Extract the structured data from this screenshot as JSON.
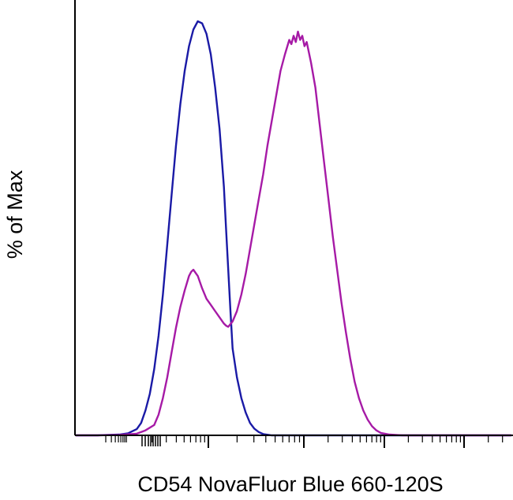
{
  "chart_data": {
    "type": "line",
    "title": "",
    "xlabel": "CD54 NovaFluor Blue 660-120S",
    "ylabel": "% of Max",
    "xscale": "log",
    "ylim": [
      0,
      100
    ],
    "grid": false,
    "legend": "none",
    "series": [
      {
        "color": "#1a1aa6",
        "points": [
          [
            0.0,
            0
          ],
          [
            0.05,
            0
          ],
          [
            0.1,
            0.2
          ],
          [
            0.12,
            0.5
          ],
          [
            0.14,
            1.5
          ],
          [
            0.15,
            3
          ],
          [
            0.16,
            6
          ],
          [
            0.17,
            10
          ],
          [
            0.18,
            16
          ],
          [
            0.19,
            24
          ],
          [
            0.2,
            34
          ],
          [
            0.21,
            46
          ],
          [
            0.22,
            58
          ],
          [
            0.23,
            70
          ],
          [
            0.24,
            80
          ],
          [
            0.25,
            88
          ],
          [
            0.26,
            94
          ],
          [
            0.27,
            98
          ],
          [
            0.28,
            100
          ],
          [
            0.29,
            99.5
          ],
          [
            0.3,
            97
          ],
          [
            0.31,
            92
          ],
          [
            0.32,
            84
          ],
          [
            0.33,
            74
          ],
          [
            0.34,
            60
          ],
          [
            0.345,
            50
          ],
          [
            0.35,
            40
          ],
          [
            0.355,
            30
          ],
          [
            0.36,
            21
          ],
          [
            0.37,
            14
          ],
          [
            0.38,
            9
          ],
          [
            0.39,
            5.5
          ],
          [
            0.4,
            3
          ],
          [
            0.41,
            1.6
          ],
          [
            0.42,
            0.8
          ],
          [
            0.43,
            0.3
          ],
          [
            0.45,
            0
          ],
          [
            1.0,
            0
          ]
        ]
      },
      {
        "color": "#a61aa6",
        "points": [
          [
            0.0,
            0
          ],
          [
            0.05,
            0
          ],
          [
            0.1,
            0.1
          ],
          [
            0.14,
            0.4
          ],
          [
            0.16,
            1.2
          ],
          [
            0.18,
            2.5
          ],
          [
            0.19,
            5
          ],
          [
            0.2,
            9
          ],
          [
            0.21,
            14
          ],
          [
            0.22,
            20
          ],
          [
            0.23,
            26
          ],
          [
            0.24,
            31
          ],
          [
            0.25,
            35
          ],
          [
            0.26,
            38.5
          ],
          [
            0.265,
            39.5
          ],
          [
            0.27,
            40
          ],
          [
            0.28,
            38.5
          ],
          [
            0.29,
            35.5
          ],
          [
            0.3,
            33
          ],
          [
            0.31,
            31.5
          ],
          [
            0.32,
            30
          ],
          [
            0.33,
            28.5
          ],
          [
            0.34,
            27
          ],
          [
            0.345,
            26.5
          ],
          [
            0.35,
            26.2
          ],
          [
            0.36,
            27.5
          ],
          [
            0.37,
            30
          ],
          [
            0.38,
            34
          ],
          [
            0.39,
            39
          ],
          [
            0.4,
            45
          ],
          [
            0.41,
            51
          ],
          [
            0.42,
            57
          ],
          [
            0.43,
            63
          ],
          [
            0.44,
            70
          ],
          [
            0.45,
            76
          ],
          [
            0.46,
            82
          ],
          [
            0.47,
            88
          ],
          [
            0.48,
            92
          ],
          [
            0.49,
            95.5
          ],
          [
            0.495,
            94.5
          ],
          [
            0.5,
            96.5
          ],
          [
            0.505,
            95
          ],
          [
            0.51,
            97.5
          ],
          [
            0.515,
            95.5
          ],
          [
            0.52,
            96.5
          ],
          [
            0.525,
            94
          ],
          [
            0.53,
            95
          ],
          [
            0.54,
            90
          ],
          [
            0.55,
            84
          ],
          [
            0.56,
            75
          ],
          [
            0.57,
            66
          ],
          [
            0.58,
            57
          ],
          [
            0.59,
            48
          ],
          [
            0.6,
            40
          ],
          [
            0.61,
            32
          ],
          [
            0.62,
            25
          ],
          [
            0.63,
            18.5
          ],
          [
            0.64,
            13
          ],
          [
            0.65,
            9
          ],
          [
            0.66,
            6
          ],
          [
            0.67,
            3.8
          ],
          [
            0.68,
            2.2
          ],
          [
            0.69,
            1.2
          ],
          [
            0.7,
            0.6
          ],
          [
            0.72,
            0.2
          ],
          [
            0.75,
            0
          ],
          [
            1.0,
            0
          ]
        ]
      }
    ]
  }
}
